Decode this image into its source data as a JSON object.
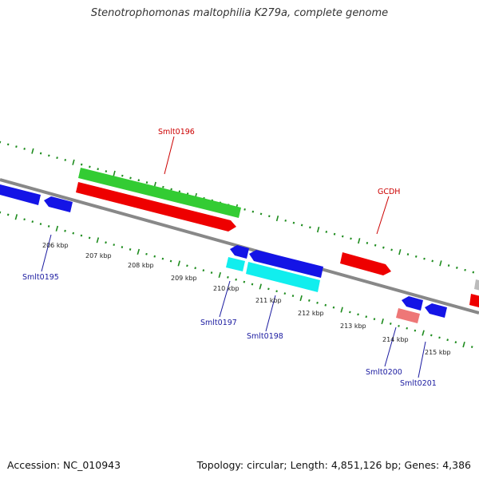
{
  "title": "Stenotrophomonas maltophilia K279a, complete genome",
  "footer": {
    "accession": "Accession: NC_010943",
    "summary": "Topology: circular; Length: 4,851,126 bp; Genes: 4,386"
  },
  "colors": {
    "backbone": "#888888",
    "tick": "#1e8c1e",
    "blue_gene": "#1414e6",
    "red_gene": "#ee0000",
    "green_gene": "#33cc33",
    "cyan_gene": "#11eeee",
    "pink_gene": "#ee7777",
    "gray_gene": "#bbbbbb",
    "label_red": "#cc0000",
    "label_blue": "#1a1aa0"
  },
  "scale_labels": [
    "206 kbp",
    "207 kbp",
    "208 kbp",
    "209 kbp",
    "210 kbp",
    "211 kbp",
    "212 kbp",
    "213 kbp",
    "214 kbp",
    "215 kbp"
  ],
  "gene_labels": {
    "smlt0196": "Smlt0196",
    "gcdh": "GCDH",
    "smlt0195": "Smlt0195",
    "smlt0197": "Smlt0197",
    "smlt0198": "Smlt0198",
    "smlt0200": "Smlt0200",
    "smlt0201": "Smlt0201"
  }
}
